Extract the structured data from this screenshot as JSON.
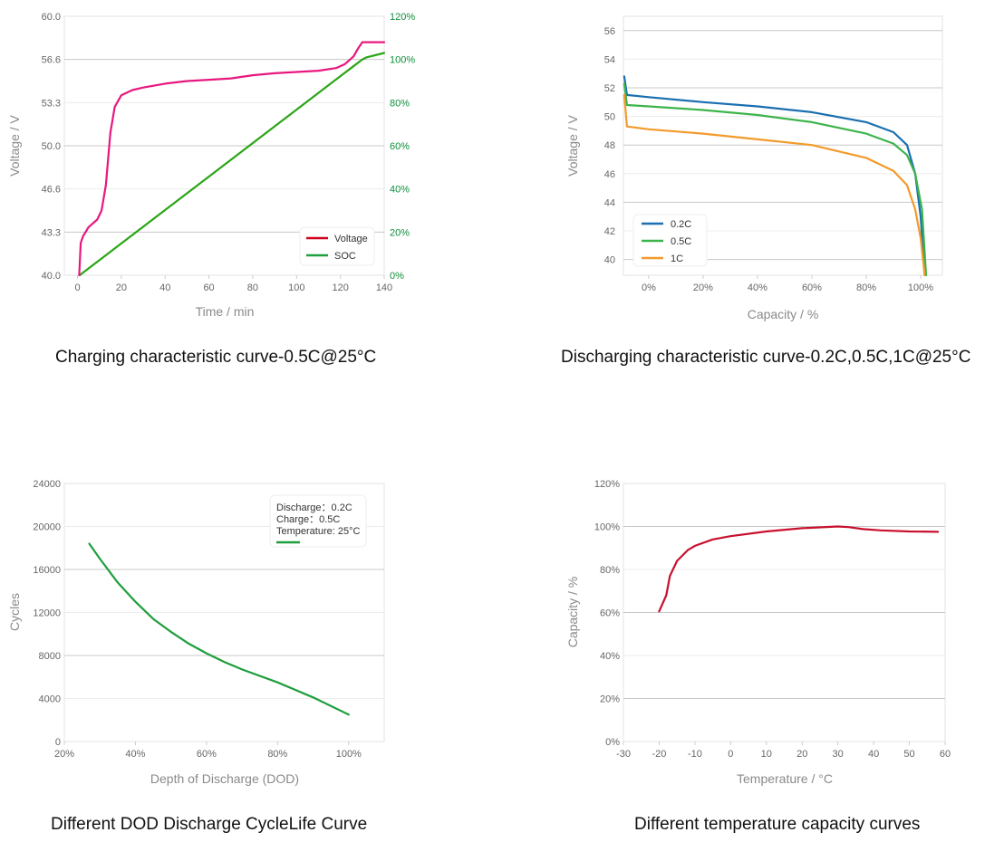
{
  "chart_data": [
    {
      "id": "charging",
      "type": "line",
      "title": "Charging characteristic curve-0.5C@25°C",
      "xlabel": "Time / min",
      "ylabel": "Voltage / V",
      "xlim": [
        -6,
        140
      ],
      "ylim": [
        40,
        60
      ],
      "y2lim": [
        0,
        120
      ],
      "xticks": [
        0,
        20,
        40,
        60,
        80,
        100,
        120,
        140
      ],
      "yticks": [
        "40.0",
        "43.3",
        "46.6",
        "50.0",
        "53.3",
        "56.6",
        "60.0"
      ],
      "y2ticks": [
        "0%",
        "20%",
        "40%",
        "60%",
        "80%",
        "100%",
        "120%"
      ],
      "grid": true,
      "legend": "bottom-right",
      "series": [
        {
          "name": "Voltage",
          "axis": "left",
          "color": "#e8177f",
          "legend_color": "#d0021b",
          "x": [
            0.8,
            1.5,
            2.5,
            5,
            9,
            11,
            13,
            15,
            17,
            20,
            25,
            30,
            40,
            50,
            60,
            70,
            80,
            90,
            100,
            110,
            118,
            122,
            126,
            128,
            130,
            140
          ],
          "y": [
            40,
            42.5,
            43,
            43.7,
            44.3,
            45,
            47,
            51,
            53,
            53.9,
            54.3,
            54.5,
            54.8,
            55.0,
            55.1,
            55.2,
            55.45,
            55.6,
            55.7,
            55.8,
            56.0,
            56.3,
            56.9,
            57.5,
            58.0,
            58.0
          ]
        },
        {
          "name": "SOC",
          "axis": "right",
          "color": "#2aa515",
          "legend_color": "#1e9e3c",
          "x": [
            1,
            130,
            132,
            140
          ],
          "y": [
            0,
            100,
            101,
            103
          ]
        }
      ]
    },
    {
      "id": "discharging",
      "type": "line",
      "title": "Discharging characteristic curve-0.2C,0.5C,1C@25°C",
      "xlabel": "Capacity / %",
      "ylabel": "Voltage / V",
      "xlim": [
        -9.3,
        108
      ],
      "ylim": [
        38.9,
        57
      ],
      "xticks": [
        "0%",
        "20%",
        "40%",
        "60%",
        "80%",
        "100%"
      ],
      "xtick_values": [
        0,
        20,
        40,
        60,
        80,
        100
      ],
      "yticks": [
        40,
        42,
        44,
        46,
        48,
        50,
        52,
        54,
        56
      ],
      "grid": true,
      "legend": "bottom-left",
      "series": [
        {
          "name": "0.2C",
          "color": "#1a6fb0",
          "x": [
            -9,
            -8,
            0,
            20,
            40,
            60,
            80,
            90,
            95,
            98,
            100,
            101.5
          ],
          "y": [
            52.8,
            51.5,
            51.35,
            51.0,
            50.7,
            50.3,
            49.6,
            48.9,
            48.0,
            46,
            43,
            38.9
          ]
        },
        {
          "name": "0.5C",
          "color": "#3cb44b",
          "x": [
            -9,
            -8,
            0,
            20,
            40,
            60,
            80,
            90,
            95,
            98,
            100.5,
            102
          ],
          "y": [
            52.3,
            50.8,
            50.7,
            50.45,
            50.1,
            49.6,
            48.8,
            48.1,
            47.3,
            46,
            43.5,
            38.9
          ]
        },
        {
          "name": "1C",
          "color": "#f39a2b",
          "x": [
            -9,
            -8,
            0,
            20,
            40,
            60,
            80,
            90,
            95,
            98,
            100,
            101.5
          ],
          "y": [
            51.5,
            49.3,
            49.1,
            48.8,
            48.4,
            48.0,
            47.1,
            46.2,
            45.2,
            43.5,
            41.5,
            38.9
          ]
        }
      ]
    },
    {
      "id": "cyclelife",
      "type": "line",
      "title": "Different DOD Discharge CycleLife Curve",
      "xlabel": "Depth of Discharge (DOD)",
      "ylabel": "Cycles",
      "xlim": [
        20,
        110
      ],
      "ylim": [
        0,
        24000
      ],
      "xticks": [
        "20%",
        "40%",
        "60%",
        "80%",
        "100%"
      ],
      "xtick_values": [
        20,
        40,
        60,
        80,
        100
      ],
      "yticks": [
        0,
        4000,
        8000,
        12000,
        16000,
        20000,
        24000
      ],
      "grid": true,
      "legend": "top-right",
      "legend_lines": [
        "Discharge：0.2C",
        "Charge：0.5C",
        "Temperature: 25°C"
      ],
      "series": [
        {
          "name": "Cycles",
          "color": "#1e9e3c",
          "x": [
            27,
            30,
            35,
            40,
            45,
            50,
            55,
            60,
            65,
            70,
            80,
            90,
            100
          ],
          "y": [
            18400,
            17000,
            14800,
            13000,
            11400,
            10200,
            9100,
            8200,
            7400,
            6700,
            5500,
            4100,
            2500
          ]
        }
      ]
    },
    {
      "id": "temperature",
      "type": "line",
      "title": "Different temperature capacity curves",
      "xlabel": "Temperature / °C",
      "ylabel": "Capacity / %",
      "xlim": [
        -30,
        60
      ],
      "ylim": [
        0,
        120
      ],
      "xticks": [
        -30,
        -20,
        -10,
        0,
        10,
        20,
        30,
        40,
        50,
        60
      ],
      "yticks": [
        "0%",
        "20%",
        "40%",
        "60%",
        "80%",
        "100%",
        "120%"
      ],
      "ytick_values": [
        0,
        20,
        40,
        60,
        80,
        100,
        120
      ],
      "grid": true,
      "series": [
        {
          "name": "Capacity",
          "color": "#c8102e",
          "x": [
            -20,
            -18,
            -17,
            -15,
            -12,
            -10,
            -5,
            0,
            10,
            20,
            30,
            33,
            37,
            42,
            50,
            58
          ],
          "y": [
            60.5,
            68,
            77,
            84,
            89,
            91,
            94,
            95.5,
            97.7,
            99.2,
            100,
            99.7,
            98.8,
            98.2,
            97.7,
            97.5
          ]
        }
      ]
    }
  ]
}
